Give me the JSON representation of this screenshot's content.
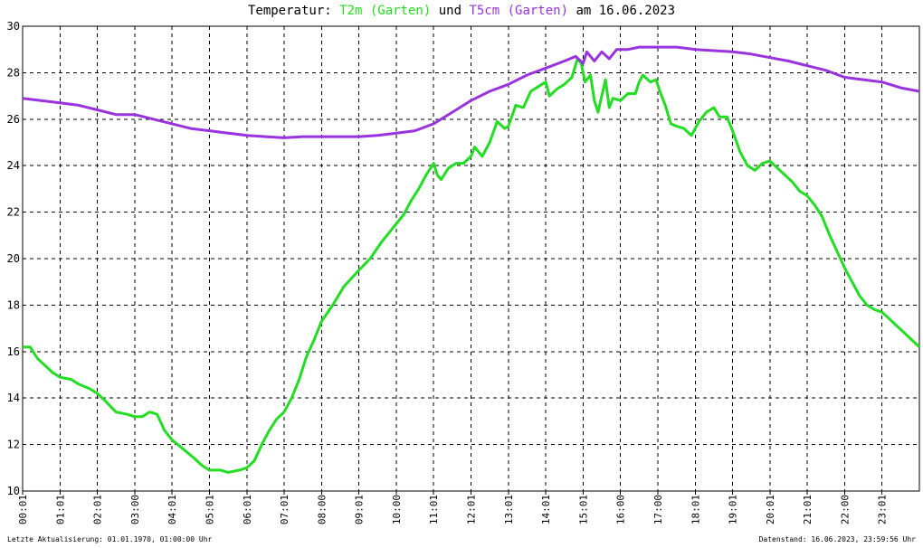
{
  "header": {
    "prefix": "Temperatur: ",
    "series1": "T2m (Garten)",
    "middle": " und ",
    "series2": "T5cm (Garten)",
    "suffix": " am 16.06.2023"
  },
  "footer": {
    "left": "Letzte Aktualisierung: 01.01.1970, 01:00:00 Uhr",
    "right": "Datenstand: 16.06.2023, 23:59:56 Uhr"
  },
  "colors": {
    "t2m": "#22dd22",
    "t5cm": "#9933dd",
    "grid": "#000000"
  },
  "chart_data": {
    "type": "line",
    "title": "Temperatur: T2m (Garten) und T5cm (Garten) am 16.06.2023",
    "xlabel": "",
    "ylabel": "",
    "xlim": [
      0,
      24
    ],
    "ylim": [
      10,
      30
    ],
    "grid": true,
    "x_ticks": [
      "00:01",
      "01:01",
      "02:01",
      "03:00",
      "04:01",
      "05:01",
      "06:01",
      "07:01",
      "08:00",
      "09:01",
      "10:00",
      "11:01",
      "12:01",
      "13:01",
      "14:01",
      "15:01",
      "16:00",
      "17:00",
      "18:01",
      "19:01",
      "20:01",
      "21:01",
      "22:00",
      "23:01"
    ],
    "y_ticks": [
      10,
      12,
      14,
      16,
      18,
      20,
      22,
      24,
      26,
      28,
      30
    ],
    "series": [
      {
        "name": "T2m (Garten)",
        "color": "#22dd22",
        "points": [
          [
            0.0,
            16.2
          ],
          [
            0.2,
            16.2
          ],
          [
            0.4,
            15.7
          ],
          [
            0.6,
            15.4
          ],
          [
            0.8,
            15.1
          ],
          [
            1.0,
            14.9
          ],
          [
            1.3,
            14.8
          ],
          [
            1.5,
            14.6
          ],
          [
            1.8,
            14.4
          ],
          [
            2.0,
            14.2
          ],
          [
            2.2,
            13.9
          ],
          [
            2.5,
            13.4
          ],
          [
            2.8,
            13.3
          ],
          [
            3.0,
            13.2
          ],
          [
            3.2,
            13.2
          ],
          [
            3.4,
            13.4
          ],
          [
            3.6,
            13.3
          ],
          [
            3.8,
            12.6
          ],
          [
            4.0,
            12.2
          ],
          [
            4.3,
            11.8
          ],
          [
            4.6,
            11.4
          ],
          [
            4.8,
            11.1
          ],
          [
            5.0,
            10.9
          ],
          [
            5.3,
            10.9
          ],
          [
            5.5,
            10.8
          ],
          [
            5.8,
            10.9
          ],
          [
            6.0,
            11.0
          ],
          [
            6.2,
            11.3
          ],
          [
            6.4,
            12.0
          ],
          [
            6.6,
            12.6
          ],
          [
            6.8,
            13.1
          ],
          [
            7.0,
            13.4
          ],
          [
            7.2,
            14.0
          ],
          [
            7.4,
            14.8
          ],
          [
            7.6,
            15.8
          ],
          [
            7.8,
            16.5
          ],
          [
            8.0,
            17.3
          ],
          [
            8.3,
            18.0
          ],
          [
            8.6,
            18.8
          ],
          [
            9.0,
            19.5
          ],
          [
            9.3,
            20.0
          ],
          [
            9.6,
            20.7
          ],
          [
            9.8,
            21.1
          ],
          [
            10.0,
            21.5
          ],
          [
            10.2,
            21.9
          ],
          [
            10.4,
            22.5
          ],
          [
            10.6,
            23.0
          ],
          [
            10.8,
            23.6
          ],
          [
            11.0,
            24.1
          ],
          [
            11.1,
            23.6
          ],
          [
            11.2,
            23.4
          ],
          [
            11.4,
            23.9
          ],
          [
            11.6,
            24.1
          ],
          [
            11.8,
            24.1
          ],
          [
            12.0,
            24.4
          ],
          [
            12.1,
            24.8
          ],
          [
            12.3,
            24.4
          ],
          [
            12.5,
            25.0
          ],
          [
            12.7,
            25.9
          ],
          [
            12.9,
            25.6
          ],
          [
            13.0,
            25.7
          ],
          [
            13.2,
            26.6
          ],
          [
            13.4,
            26.5
          ],
          [
            13.6,
            27.2
          ],
          [
            13.8,
            27.4
          ],
          [
            14.0,
            27.6
          ],
          [
            14.1,
            27.0
          ],
          [
            14.3,
            27.3
          ],
          [
            14.5,
            27.5
          ],
          [
            14.7,
            27.8
          ],
          [
            14.85,
            28.6
          ],
          [
            14.95,
            28.4
          ],
          [
            15.05,
            27.6
          ],
          [
            15.2,
            27.9
          ],
          [
            15.3,
            26.8
          ],
          [
            15.4,
            26.3
          ],
          [
            15.5,
            27.0
          ],
          [
            15.6,
            27.7
          ],
          [
            15.7,
            26.5
          ],
          [
            15.8,
            26.9
          ],
          [
            16.0,
            26.8
          ],
          [
            16.2,
            27.1
          ],
          [
            16.4,
            27.1
          ],
          [
            16.5,
            27.6
          ],
          [
            16.6,
            27.9
          ],
          [
            16.8,
            27.6
          ],
          [
            16.95,
            27.7
          ],
          [
            17.1,
            27.0
          ],
          [
            17.2,
            26.6
          ],
          [
            17.35,
            25.8
          ],
          [
            17.5,
            25.7
          ],
          [
            17.7,
            25.6
          ],
          [
            17.9,
            25.3
          ],
          [
            18.1,
            25.9
          ],
          [
            18.3,
            26.3
          ],
          [
            18.5,
            26.5
          ],
          [
            18.65,
            26.1
          ],
          [
            18.85,
            26.1
          ],
          [
            19.0,
            25.5
          ],
          [
            19.2,
            24.6
          ],
          [
            19.4,
            24.0
          ],
          [
            19.6,
            23.8
          ],
          [
            19.8,
            24.1
          ],
          [
            20.0,
            24.2
          ],
          [
            20.2,
            23.9
          ],
          [
            20.4,
            23.6
          ],
          [
            20.6,
            23.3
          ],
          [
            20.8,
            22.9
          ],
          [
            21.0,
            22.7
          ],
          [
            21.2,
            22.3
          ],
          [
            21.4,
            21.8
          ],
          [
            21.6,
            21.0
          ],
          [
            21.8,
            20.3
          ],
          [
            22.0,
            19.6
          ],
          [
            22.2,
            19.0
          ],
          [
            22.4,
            18.4
          ],
          [
            22.6,
            18.0
          ],
          [
            22.8,
            17.8
          ],
          [
            23.0,
            17.7
          ],
          [
            23.2,
            17.4
          ],
          [
            23.4,
            17.1
          ],
          [
            23.6,
            16.8
          ],
          [
            23.8,
            16.5
          ],
          [
            24.0,
            16.2
          ]
        ]
      },
      {
        "name": "T5cm (Garten)",
        "color": "#9933dd",
        "points": [
          [
            0.0,
            26.9
          ],
          [
            0.5,
            26.8
          ],
          [
            1.0,
            26.7
          ],
          [
            1.5,
            26.6
          ],
          [
            2.0,
            26.4
          ],
          [
            2.5,
            26.2
          ],
          [
            3.0,
            26.2
          ],
          [
            3.5,
            26.0
          ],
          [
            4.0,
            25.8
          ],
          [
            4.5,
            25.6
          ],
          [
            5.0,
            25.5
          ],
          [
            5.5,
            25.4
          ],
          [
            6.0,
            25.3
          ],
          [
            6.5,
            25.25
          ],
          [
            7.0,
            25.2
          ],
          [
            7.5,
            25.25
          ],
          [
            8.0,
            25.25
          ],
          [
            8.5,
            25.25
          ],
          [
            9.0,
            25.25
          ],
          [
            9.5,
            25.3
          ],
          [
            10.0,
            25.4
          ],
          [
            10.5,
            25.5
          ],
          [
            11.0,
            25.8
          ],
          [
            11.5,
            26.3
          ],
          [
            12.0,
            26.8
          ],
          [
            12.5,
            27.2
          ],
          [
            13.0,
            27.5
          ],
          [
            13.5,
            27.9
          ],
          [
            14.0,
            28.2
          ],
          [
            14.5,
            28.5
          ],
          [
            14.8,
            28.7
          ],
          [
            15.0,
            28.4
          ],
          [
            15.1,
            28.9
          ],
          [
            15.3,
            28.5
          ],
          [
            15.5,
            28.9
          ],
          [
            15.7,
            28.6
          ],
          [
            15.9,
            29.0
          ],
          [
            16.2,
            29.0
          ],
          [
            16.5,
            29.1
          ],
          [
            17.0,
            29.1
          ],
          [
            17.5,
            29.1
          ],
          [
            18.0,
            29.0
          ],
          [
            18.5,
            28.95
          ],
          [
            19.0,
            28.9
          ],
          [
            19.5,
            28.8
          ],
          [
            20.0,
            28.65
          ],
          [
            20.5,
            28.5
          ],
          [
            21.0,
            28.3
          ],
          [
            21.5,
            28.1
          ],
          [
            22.0,
            27.8
          ],
          [
            22.5,
            27.7
          ],
          [
            23.0,
            27.6
          ],
          [
            23.5,
            27.35
          ],
          [
            24.0,
            27.2
          ]
        ]
      }
    ]
  }
}
